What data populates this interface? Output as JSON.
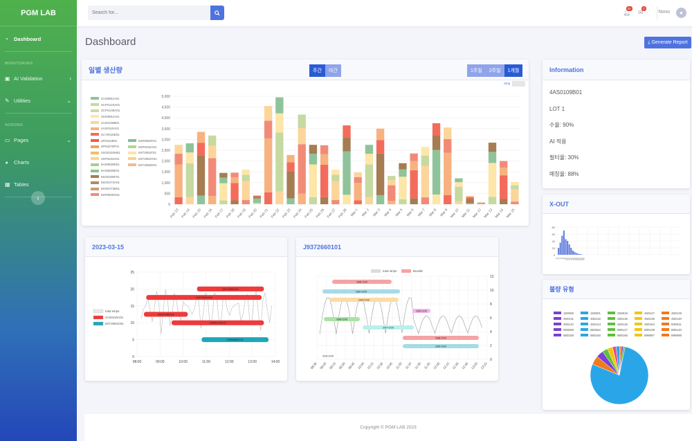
{
  "app": {
    "brand": "PGM LAB"
  },
  "sidebar": {
    "dashboard": "Dashboard",
    "monitoring_heading": "MONITORING",
    "ai_validation": "AI Validation",
    "utilities": "Utilities",
    "addons_heading": "ADDONS",
    "pages": "Pages",
    "charts": "Charts",
    "tables": "Tables"
  },
  "topbar": {
    "search_placeholder": "Search for...",
    "alerts_badge": "3+",
    "messages_badge": "7",
    "user_name": "Nono"
  },
  "page": {
    "title": "Dashboard",
    "generate_report": "Generate Report"
  },
  "production": {
    "title": "일별 생산량",
    "tab_day": "주간",
    "tab_night": "야간",
    "range_1w": "1주일",
    "range_2w": "2주일",
    "range_1m": "1개월",
    "strip_label": "Strip"
  },
  "info": {
    "title": "Information",
    "lot_id": "4AS0109B01",
    "lot": "LOT 1",
    "yield": "수율: 90%",
    "ai": "AI 적용",
    "filter": "필터율: 30%",
    "match": "매칭율: 88%"
  },
  "xout": {
    "title": "X-OUT"
  },
  "defect": {
    "title": "불량 유형",
    "legend": [
      {
        "label": "150506",
        "color": "#7b3fd4"
      },
      {
        "label": "150601",
        "color": "#2aa6e8"
      },
      {
        "label": "250818",
        "color": "#5ec13c"
      },
      {
        "label": "450127",
        "color": "#f2c511"
      },
      {
        "label": "450129",
        "color": "#f17a1d"
      },
      {
        "label": "450131",
        "color": "#7b3fd4"
      },
      {
        "label": "450132",
        "color": "#2aa6e8"
      },
      {
        "label": "450135",
        "color": "#5ec13c"
      },
      {
        "label": "450136",
        "color": "#f2c511"
      },
      {
        "label": "450140",
        "color": "#f17a1d"
      },
      {
        "label": "450142",
        "color": "#7b3fd4"
      },
      {
        "label": "450144",
        "color": "#2aa6e8"
      },
      {
        "label": "450146",
        "color": "#5ec13c"
      },
      {
        "label": "450164",
        "color": "#f2c511"
      },
      {
        "label": "500511",
        "color": "#f17a1d"
      },
      {
        "label": "550508",
        "color": "#7b3fd4"
      },
      {
        "label": "850552",
        "color": "#2aa6e8"
      },
      {
        "label": "880127",
        "color": "#5ec13c"
      },
      {
        "label": "880139",
        "color": "#f2c511"
      },
      {
        "label": "880140",
        "color": "#f17a1d"
      },
      {
        "label": "880159",
        "color": "#7b3fd4"
      },
      {
        "label": "880160",
        "color": "#2aa6e8"
      },
      {
        "label": "880165",
        "color": "#5ec13c"
      },
      {
        "label": "999997",
        "color": "#f2c511"
      },
      {
        "label": "999998",
        "color": "#f17a1d"
      }
    ]
  },
  "timeline1": {
    "title": "2023-03-15"
  },
  "timeline2": {
    "title": "J9372660101"
  },
  "footer": {
    "copyright": "Copyright © PGM LAB 2023"
  },
  "chart_data": [
    {
      "type": "bar",
      "title": "일별 생산량",
      "stacked": true,
      "ylim": [
        0,
        5000
      ],
      "yticks": [
        "5,000",
        "4,500",
        "4,000",
        "3,500",
        "3,000",
        "2,500",
        "2,000",
        "1,500",
        "1,000",
        "500",
        "0"
      ],
      "categories": [
        "Feb 13",
        "Feb 14",
        "Feb 15",
        "Feb 16",
        "Feb 17",
        "Feb 18",
        "Feb 19",
        "Feb 20",
        "Feb 21",
        "Feb 22",
        "Feb 23",
        "Feb 24",
        "Feb 25",
        "Feb 26",
        "Feb 27",
        "Feb 28",
        "Mar 1",
        "Mar 2",
        "Mar 3",
        "Mar 4",
        "Mar 5",
        "Mar 6",
        "Mar 7",
        "Mar 8",
        "Mar 9",
        "Mar 10",
        "Mar 11",
        "Mar 12",
        "Mar 13",
        "Mar 14",
        "Mar 15"
      ],
      "legend": [
        {
          "name": "2AS0881A01",
          "color": "#8fc49a"
        },
        {
          "name": "2CPS144A01",
          "color": "#c6d9a0"
        },
        {
          "name": "2CPS148A01",
          "color": "#c9dca2"
        },
        {
          "name": "2SS0881A01",
          "color": "#fde6a8"
        },
        {
          "name": "4AS0109B01",
          "color": "#fcd59b"
        },
        {
          "name": "4AS0110A01",
          "color": "#f7b27f"
        },
        {
          "name": "4CY0016E01",
          "color": "#f36c5b"
        },
        {
          "name": "4P0101B01",
          "color": "#ef5a4e"
        },
        {
          "name": "4PK0278F01",
          "color": "#f3a064"
        },
        {
          "name": "4SO0310M01",
          "color": "#f1c25a"
        },
        {
          "name": "4SP0223A01",
          "color": "#f6d68b"
        },
        {
          "name": "6AS0829D01",
          "color": "#a8cf8c"
        },
        {
          "name": "6AS0829E01",
          "color": "#8cc48c"
        },
        {
          "name": "6SO0435F01",
          "color": "#a67c52"
        },
        {
          "name": "6SO0473A01",
          "color": "#b08a64"
        },
        {
          "name": "6SO0473B01",
          "color": "#c89d78"
        },
        {
          "name": "6SP0829G01",
          "color": "#f18b78"
        },
        {
          "name": "6SP0953F01",
          "color": "#7fbf9a"
        },
        {
          "name": "6SP0232A01",
          "color": "#b4d58e"
        },
        {
          "name": "6ST2081F01",
          "color": "#f9e3a6"
        },
        {
          "name": "6ST2081G01",
          "color": "#fbd08e"
        },
        {
          "name": "6ST2082D01",
          "color": "#f7b98a"
        }
      ],
      "series_totals": [
        2750,
        2820,
        3350,
        3180,
        1450,
        1460,
        1600,
        400,
        4550,
        4950,
        2280,
        4150,
        2750,
        2730,
        1600,
        3650,
        1470,
        2750,
        3500,
        1310,
        1900,
        2350,
        2650,
        3750,
        3550,
        1200,
        380,
        100,
        2850,
        2000,
        1030
      ]
    },
    {
      "type": "bar",
      "title": "X-OUT",
      "categories": [
        "0",
        "2",
        "4",
        "6",
        "8",
        "10",
        "12",
        "14",
        "16",
        "18",
        "20",
        "22",
        "24",
        "26"
      ],
      "values": [
        20,
        35,
        55,
        70,
        45,
        40,
        30,
        20,
        12,
        8,
        5,
        3,
        2,
        1
      ],
      "ylim": [
        0,
        80
      ],
      "yticks": [
        "80",
        "60",
        "40",
        "20",
        "0"
      ]
    },
    {
      "type": "pie",
      "title": "불량 유형",
      "values": [
        78,
        5,
        4,
        3,
        3,
        2,
        2,
        1,
        1,
        1
      ],
      "colors": [
        "#2aa6e8",
        "#f17a1d",
        "#7b3fd4",
        "#5ec13c",
        "#f2c511",
        "#e84a8a",
        "#2aa6e8",
        "#f17a1d",
        "#7b3fd4",
        "#5ec13c"
      ]
    },
    {
      "type": "gantt",
      "title": "2023-03-15",
      "xticks": [
        "08:00",
        "09:00",
        "10:00",
        "11:00",
        "12:00",
        "13:00",
        "14:00"
      ],
      "yticks": [
        "0",
        "5",
        "10",
        "15",
        "20",
        "25"
      ],
      "legend": [
        {
          "name": "total strips",
          "color": "#e8e8e8"
        },
        {
          "name": "4AS0110A01",
          "color": "#ee3a3a"
        },
        {
          "name": "6ST2081G01",
          "color": "#1fa7b8"
        }
      ],
      "bars": [
        {
          "label": "J9372660101",
          "start": 10.6,
          "end": 13.5,
          "row": 20,
          "color": "#ee3a3a"
        },
        {
          "label": "J9372660100",
          "start": 8.4,
          "end": 13.4,
          "row": 17.5,
          "color": "#ee3a3a"
        },
        {
          "label": "J9374780101",
          "start": 8.3,
          "end": 10.2,
          "row": 12.5,
          "color": "#ee3a3a"
        },
        {
          "label": "J9356720101",
          "start": 9.5,
          "end": 13.5,
          "row": 10,
          "color": "#ee3a3a"
        },
        {
          "label": "J9356860101",
          "start": 10.8,
          "end": 13.7,
          "row": 5,
          "color": "#1fa7b8"
        }
      ]
    },
    {
      "type": "gantt",
      "title": "J9372660101",
      "legend": [
        {
          "name": "total strips",
          "color": "#dcdcdc"
        },
        {
          "name": "Bundle",
          "color": "#f5a3a3"
        }
      ],
      "xticks": [
        "08:35",
        "09:00",
        "09:15",
        "09:30",
        "09:45",
        "10:00",
        "10:15",
        "10:30",
        "10:45",
        "11:00",
        "11:15",
        "11:30",
        "11:45",
        "12:00",
        "12:15",
        "12:30",
        "12:45",
        "13:00",
        "13:15"
      ],
      "yticks": [
        "0",
        "2",
        "4",
        "6",
        "8",
        "10",
        "12"
      ],
      "bars": [
        {
          "label": "S06-C00",
          "row": 11.2,
          "color": "#f5a3a3"
        },
        {
          "label": "S02-C00",
          "row": 9.8,
          "color": "#a4dbe6"
        },
        {
          "label": "S04-C00",
          "row": 8.6,
          "color": "#fbdca4"
        },
        {
          "label": "S05-C00",
          "row": 7,
          "color": "#f4b4e8"
        },
        {
          "label": "S06-C00",
          "row": 5.8,
          "color": "#a9e3a4"
        },
        {
          "label": "S07-C00",
          "row": 4.6,
          "color": "#b7f0ec"
        },
        {
          "label": "S08-C00",
          "row": 3.1,
          "color": "#f5a3a3"
        },
        {
          "label": "S09-C00",
          "row": 1.9,
          "color": "#a4dbe6"
        },
        {
          "label": "S15-C00",
          "row": 0.5,
          "color": "#ffffff"
        }
      ]
    }
  ]
}
